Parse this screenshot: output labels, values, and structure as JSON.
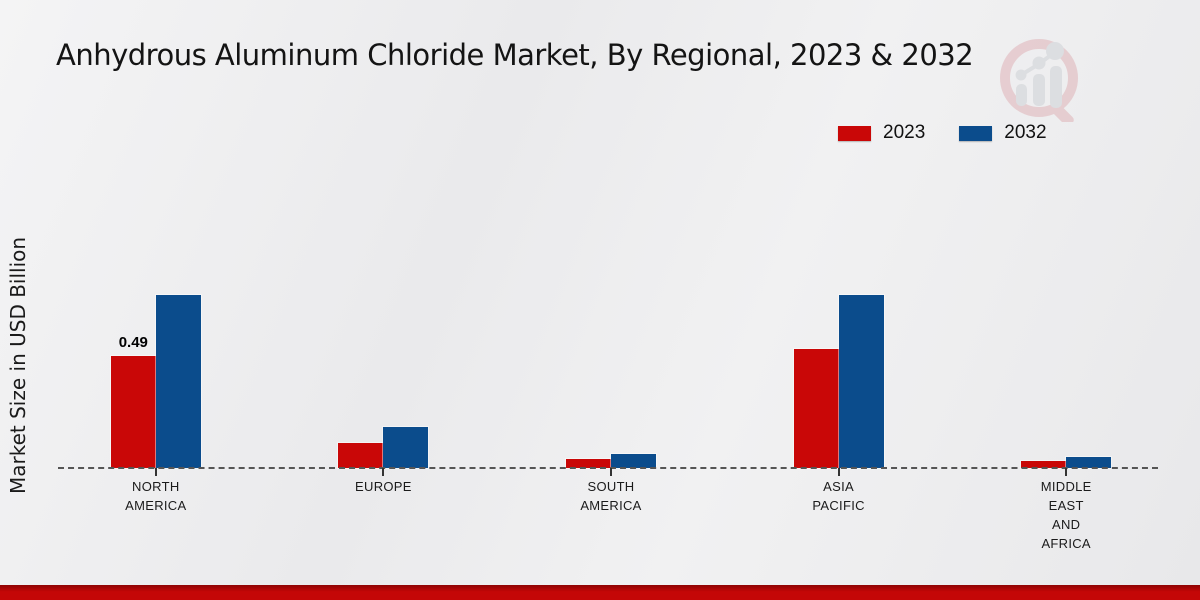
{
  "title": "Anhydrous Aluminum Chloride Market, By Regional, 2023 & 2032",
  "ylabel": "Market Size in USD Billion",
  "legend": {
    "items": [
      {
        "label": "2023",
        "color": "#c90707"
      },
      {
        "label": "2032",
        "color": "#0b4c8c"
      }
    ]
  },
  "chart_data": {
    "type": "bar",
    "categories": [
      "NORTH AMERICA",
      "EUROPE",
      "SOUTH AMERICA",
      "ASIA PACIFIC",
      "MIDDLE EAST AND AFRICA"
    ],
    "series": [
      {
        "name": "2023",
        "color": "#c90707",
        "values": [
          0.49,
          0.11,
          0.04,
          0.52,
          0.03
        ]
      },
      {
        "name": "2032",
        "color": "#0b4c8c",
        "values": [
          0.76,
          0.18,
          0.06,
          0.76,
          0.05
        ]
      }
    ],
    "bar_labels": [
      {
        "category_index": 0,
        "series_index": 0,
        "text": "0.49"
      }
    ],
    "title": "Anhydrous Aluminum Chloride Market, By Regional, 2023 & 2032",
    "xlabel": "",
    "ylabel": "Market Size in USD Billion",
    "ylim": [
      0,
      0.9
    ],
    "grid": false,
    "baseline_style": "dashed",
    "legend_position": "top-right"
  },
  "colors": {
    "series_2023": "#c90707",
    "series_2032": "#0b4c8c",
    "baseline": "#555555",
    "footer_bar": "#c40707",
    "background": "#ededee"
  }
}
